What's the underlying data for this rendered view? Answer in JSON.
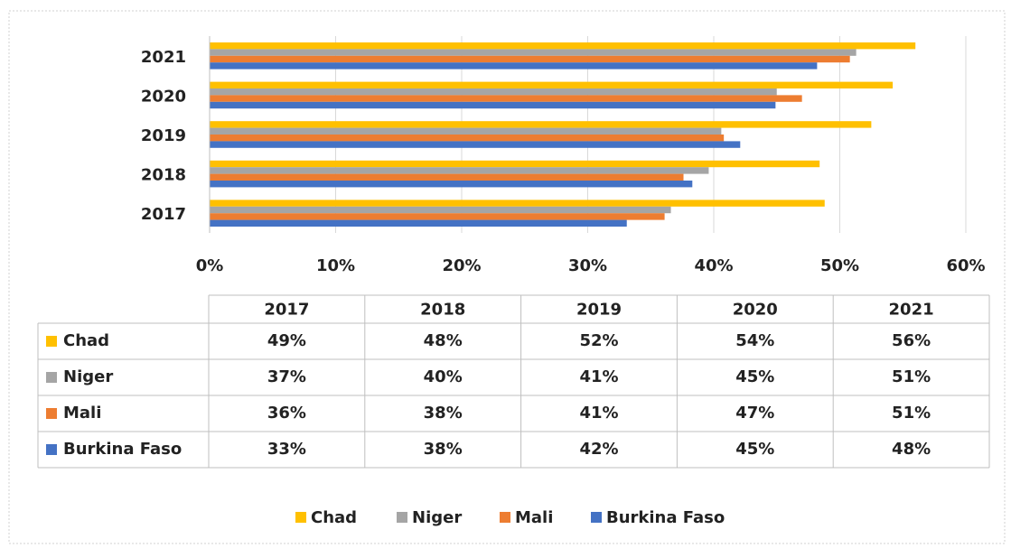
{
  "chart_data": {
    "type": "bar",
    "orientation": "horizontal",
    "categories": [
      "2017",
      "2018",
      "2019",
      "2020",
      "2021"
    ],
    "series": [
      {
        "name": "Chad",
        "color": "#ffc000",
        "values": [
          48.8,
          48.4,
          52.5,
          54.2,
          56.0
        ],
        "value_labels": [
          "49%",
          "48%",
          "52%",
          "54%",
          "56%"
        ]
      },
      {
        "name": "Niger",
        "color": "#a5a5a5",
        "values": [
          36.6,
          39.6,
          40.6,
          45.0,
          51.3
        ],
        "value_labels": [
          "37%",
          "40%",
          "41%",
          "45%",
          "51%"
        ]
      },
      {
        "name": "Mali",
        "color": "#ed7d31",
        "values": [
          36.1,
          37.6,
          40.8,
          47.0,
          50.8
        ],
        "value_labels": [
          "36%",
          "38%",
          "41%",
          "47%",
          "51%"
        ]
      },
      {
        "name": "Burkina Faso",
        "color": "#4472c4",
        "values": [
          33.1,
          38.3,
          42.1,
          44.9,
          48.2
        ],
        "value_labels": [
          "33%",
          "38%",
          "42%",
          "45%",
          "48%"
        ]
      }
    ],
    "xlim": [
      0,
      60
    ],
    "xticks": [
      {
        "value": 0,
        "label": "0%"
      },
      {
        "value": 10,
        "label": "10%"
      },
      {
        "value": 20,
        "label": "20%"
      },
      {
        "value": 30,
        "label": "30%"
      },
      {
        "value": 40,
        "label": "40%"
      },
      {
        "value": 50,
        "label": "50%"
      },
      {
        "value": 60,
        "label": "60%"
      }
    ],
    "grid": true,
    "legend": "bottom",
    "data_table": true
  }
}
